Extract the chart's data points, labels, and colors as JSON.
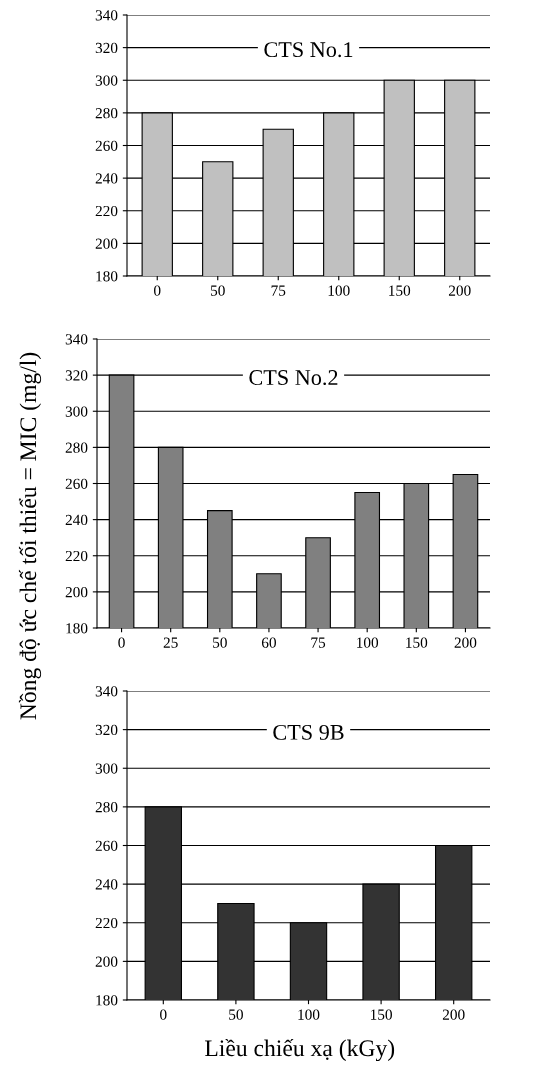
{
  "chart_data": [
    {
      "type": "bar",
      "title": "CTS No.1",
      "categories": [
        "0",
        "50",
        "75",
        "100",
        "150",
        "200"
      ],
      "values": [
        280,
        250,
        270,
        280,
        300,
        300
      ],
      "color": "#c0c0c0",
      "ylim": [
        180,
        340
      ],
      "yticks": [
        180,
        200,
        220,
        240,
        260,
        280,
        300,
        320,
        340
      ],
      "grid": "y"
    },
    {
      "type": "bar",
      "title": "CTS No.2",
      "ylabel": "Nồng độ ức chế tối thiểu = MIC (mg/l)",
      "categories": [
        "0",
        "25",
        "50",
        "60",
        "75",
        "100",
        "150",
        "200"
      ],
      "values": [
        320,
        280,
        245,
        210,
        230,
        255,
        260,
        265
      ],
      "color": "#808080",
      "ylim": [
        180,
        340
      ],
      "yticks": [
        180,
        200,
        220,
        240,
        260,
        280,
        300,
        320,
        340
      ],
      "grid": "y"
    },
    {
      "type": "bar",
      "title": "CTS 9B",
      "xlabel": "Liều chiếu xạ (kGy)",
      "categories": [
        "0",
        "50",
        "100",
        "150",
        "200"
      ],
      "values": [
        280,
        230,
        220,
        240,
        260
      ],
      "color": "#333333",
      "ylim": [
        180,
        340
      ],
      "yticks": [
        180,
        200,
        220,
        240,
        260,
        280,
        300,
        320,
        340
      ],
      "grid": "y"
    }
  ]
}
